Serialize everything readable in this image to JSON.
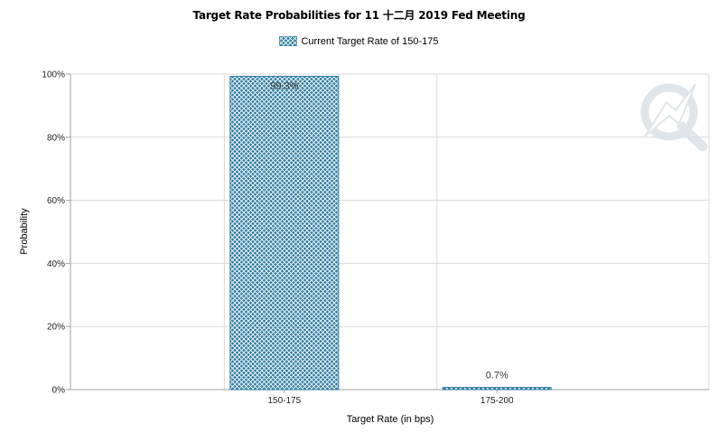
{
  "colors": {
    "bar_fill": "#2e7da3",
    "bar_hatch": "#ffffff",
    "grid": "#d9d9d9",
    "axis": "#a0a0a0",
    "watermark": "#dde3e8"
  },
  "watermark_icon": "quikstrike-q-logo-icon",
  "chart_data": {
    "type": "bar",
    "title": "Target Rate Probabilities for 11 十二月 2019 Fed Meeting",
    "xlabel": "Target Rate (in bps)",
    "ylabel": "Probability",
    "categories": [
      "150-175",
      "175-200"
    ],
    "series": [
      {
        "name": "Current Target Rate of 150-175",
        "values": [
          99.3,
          0.7
        ]
      }
    ],
    "data_labels": [
      "99.3%",
      "0.7%"
    ],
    "y_ticks": [
      "0%",
      "20%",
      "40%",
      "60%",
      "80%",
      "100%"
    ],
    "ylim": [
      0,
      100
    ],
    "grid": true,
    "legend_position": "top-center"
  }
}
